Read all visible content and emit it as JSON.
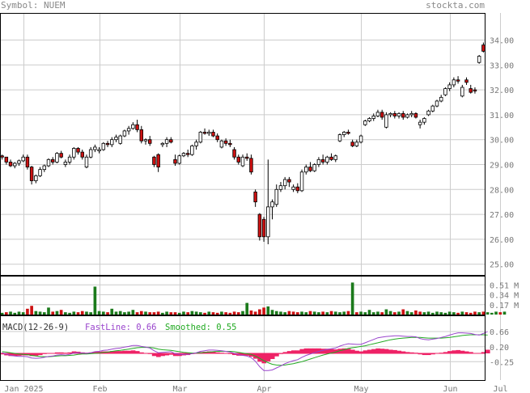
{
  "header": {
    "symbol_label": "Symbol: NUEM",
    "site": "stockta.com"
  },
  "colors": {
    "up": "#ffffff",
    "down": "#cc1111",
    "vol_up": "#1b7a1b",
    "vol_down": "#cc1111",
    "fast": "#9944cc",
    "smooth": "#22aa22",
    "hist": "#ee2266",
    "grid": "#cccccc"
  },
  "chart_data": [
    {
      "type": "candlestick",
      "name": "price",
      "y_ticks": [
        34.0,
        33.0,
        32.0,
        31.0,
        30.0,
        29.0,
        28.0,
        27.0,
        26.0,
        25.0
      ],
      "y_tick_labels": [
        "34.00",
        "33.00",
        "32.00",
        "31.00",
        "30.00",
        "29.00",
        "28.00",
        "27.00",
        "26.00",
        "25.00"
      ],
      "x_labels": [
        "Jan 2025",
        "Feb",
        "Mar",
        "Apr",
        "May",
        "Jun",
        "Jul"
      ],
      "x_label_index": [
        5,
        23,
        42,
        62,
        85,
        106,
        118
      ],
      "candles": [
        [
          29.35,
          29.4,
          29.2,
          29.3
        ],
        [
          29.3,
          29.3,
          29.0,
          29.1
        ],
        [
          29.1,
          29.2,
          28.9,
          28.95
        ],
        [
          28.95,
          29.1,
          28.85,
          29.05
        ],
        [
          29.05,
          29.2,
          28.95,
          29.15
        ],
        [
          29.15,
          29.4,
          29.1,
          29.3
        ],
        [
          29.3,
          29.4,
          28.8,
          28.9
        ],
        [
          28.9,
          28.95,
          28.2,
          28.35
        ],
        [
          28.35,
          28.6,
          28.25,
          28.55
        ],
        [
          28.55,
          28.9,
          28.5,
          28.8
        ],
        [
          28.8,
          29.0,
          28.7,
          28.95
        ],
        [
          28.95,
          29.25,
          28.9,
          29.2
        ],
        [
          29.2,
          29.3,
          29.0,
          29.1
        ],
        [
          29.1,
          29.5,
          29.05,
          29.45
        ],
        [
          29.45,
          29.55,
          29.25,
          29.3
        ],
        [
          29.0,
          29.2,
          28.9,
          29.1
        ],
        [
          29.1,
          29.4,
          29.0,
          29.3
        ],
        [
          29.3,
          29.7,
          29.2,
          29.65
        ],
        [
          29.65,
          29.7,
          29.4,
          29.5
        ],
        [
          29.5,
          29.6,
          29.2,
          29.3
        ],
        [
          28.9,
          29.4,
          28.85,
          29.3
        ],
        [
          29.3,
          29.7,
          29.25,
          29.6
        ],
        [
          29.6,
          29.8,
          29.5,
          29.7
        ],
        [
          29.55,
          29.7,
          29.45,
          29.6
        ],
        [
          29.6,
          29.9,
          29.55,
          29.85
        ],
        [
          29.85,
          29.95,
          29.7,
          29.8
        ],
        [
          29.8,
          30.1,
          29.7,
          30.0
        ],
        [
          30.0,
          30.2,
          29.9,
          30.1
        ],
        [
          29.85,
          30.2,
          29.8,
          30.15
        ],
        [
          30.15,
          30.4,
          30.1,
          30.35
        ],
        [
          30.35,
          30.55,
          30.2,
          30.45
        ],
        [
          30.45,
          30.7,
          30.4,
          30.6
        ],
        [
          30.6,
          30.8,
          30.3,
          30.4
        ],
        [
          30.4,
          30.55,
          29.85,
          29.95
        ],
        [
          29.95,
          30.05,
          29.8,
          30.0
        ],
        [
          30.0,
          30.15,
          29.75,
          29.85
        ],
        [
          29.3,
          29.35,
          28.9,
          29.0
        ],
        [
          29.4,
          29.45,
          28.7,
          28.9
        ],
        [
          29.8,
          29.9,
          29.7,
          29.85
        ],
        [
          29.85,
          30.1,
          29.7,
          30.0
        ],
        [
          30.0,
          30.1,
          29.85,
          29.9
        ],
        [
          29.2,
          29.4,
          28.95,
          29.05
        ],
        [
          29.05,
          29.4,
          29.0,
          29.35
        ],
        [
          29.35,
          29.5,
          29.3,
          29.45
        ],
        [
          29.45,
          29.6,
          29.3,
          29.4
        ],
        [
          29.4,
          29.8,
          29.35,
          29.75
        ],
        [
          29.75,
          30.0,
          29.6,
          29.9
        ],
        [
          29.9,
          30.35,
          29.85,
          30.3
        ],
        [
          30.3,
          30.45,
          30.2,
          30.25
        ],
        [
          30.25,
          30.4,
          30.15,
          30.3
        ],
        [
          30.3,
          30.4,
          30.1,
          30.15
        ],
        [
          30.15,
          30.25,
          29.9,
          30.0
        ],
        [
          29.7,
          30.0,
          29.65,
          29.95
        ],
        [
          29.95,
          30.05,
          29.75,
          29.85
        ],
        [
          29.85,
          30.0,
          29.7,
          29.8
        ],
        [
          29.6,
          29.7,
          29.2,
          29.3
        ],
        [
          29.3,
          29.4,
          29.0,
          29.1
        ],
        [
          28.95,
          29.4,
          28.9,
          29.3
        ],
        [
          29.3,
          29.45,
          29.15,
          29.25
        ],
        [
          29.25,
          29.4,
          28.6,
          28.7
        ],
        [
          27.9,
          28.0,
          27.3,
          27.5
        ],
        [
          27.0,
          27.05,
          25.95,
          26.1
        ],
        [
          26.8,
          26.9,
          25.9,
          26.1
        ],
        [
          26.1,
          29.2,
          25.8,
          27.3
        ],
        [
          27.3,
          27.6,
          26.8,
          27.5
        ],
        [
          27.4,
          28.2,
          27.3,
          28.0
        ],
        [
          28.0,
          28.3,
          27.9,
          28.15
        ],
        [
          28.15,
          28.5,
          28.0,
          28.4
        ],
        [
          28.4,
          28.5,
          28.1,
          28.3
        ],
        [
          28.0,
          28.2,
          27.9,
          28.1
        ],
        [
          28.1,
          28.25,
          27.85,
          27.95
        ],
        [
          27.95,
          28.8,
          27.9,
          28.7
        ],
        [
          28.7,
          29.0,
          28.6,
          28.9
        ],
        [
          28.9,
          29.1,
          28.7,
          28.75
        ],
        [
          28.75,
          29.05,
          28.7,
          29.0
        ],
        [
          29.0,
          29.3,
          28.9,
          29.2
        ],
        [
          29.2,
          29.4,
          29.0,
          29.1
        ],
        [
          29.1,
          29.35,
          29.0,
          29.3
        ],
        [
          29.3,
          29.45,
          29.15,
          29.2
        ],
        [
          29.2,
          29.4,
          29.1,
          29.35
        ],
        [
          29.95,
          30.25,
          29.9,
          30.2
        ],
        [
          30.2,
          30.35,
          30.1,
          30.3
        ],
        [
          30.3,
          30.4,
          30.2,
          30.25
        ],
        [
          29.9,
          30.0,
          29.7,
          29.75
        ],
        [
          29.75,
          30.0,
          29.7,
          29.9
        ],
        [
          29.9,
          30.2,
          29.85,
          30.15
        ],
        [
          30.6,
          30.8,
          30.55,
          30.75
        ],
        [
          30.75,
          30.9,
          30.7,
          30.85
        ],
        [
          30.85,
          31.05,
          30.75,
          30.95
        ],
        [
          30.95,
          31.2,
          30.9,
          31.1
        ],
        [
          31.1,
          31.2,
          30.8,
          30.9
        ],
        [
          30.5,
          31.1,
          30.45,
          31.0
        ],
        [
          31.0,
          31.1,
          30.9,
          31.05
        ],
        [
          31.05,
          31.15,
          30.85,
          30.95
        ],
        [
          30.95,
          31.1,
          30.85,
          31.05
        ],
        [
          31.05,
          31.15,
          30.8,
          30.9
        ],
        [
          30.9,
          31.05,
          30.85,
          31.0
        ],
        [
          31.0,
          31.15,
          30.9,
          31.05
        ],
        [
          31.05,
          31.1,
          30.85,
          30.9
        ],
        [
          30.6,
          30.8,
          30.45,
          30.7
        ],
        [
          30.7,
          30.9,
          30.6,
          30.85
        ],
        [
          31.0,
          31.2,
          30.95,
          31.15
        ],
        [
          31.15,
          31.4,
          31.1,
          31.35
        ],
        [
          31.35,
          31.6,
          31.3,
          31.55
        ],
        [
          31.55,
          31.8,
          31.5,
          31.7
        ],
        [
          31.8,
          32.1,
          31.75,
          32.05
        ],
        [
          32.05,
          32.3,
          31.95,
          32.2
        ],
        [
          32.2,
          32.5,
          32.1,
          32.4
        ],
        [
          32.4,
          32.55,
          32.25,
          32.35
        ],
        [
          31.75,
          32.2,
          31.7,
          32.1
        ],
        [
          32.4,
          32.5,
          32.2,
          32.3
        ],
        [
          32.05,
          32.2,
          31.85,
          31.9
        ],
        [
          32.0,
          32.1,
          31.85,
          31.95
        ],
        [
          33.1,
          33.4,
          33.05,
          33.35
        ],
        [
          33.8,
          33.9,
          33.5,
          33.55
        ]
      ]
    },
    {
      "type": "bar",
      "name": "volume",
      "y_ticks": [
        0.51,
        0.34,
        0.17
      ],
      "y_tick_labels": [
        "0.51 M",
        "0.34 M",
        "0.17 M"
      ],
      "values": [
        0.03,
        0.04,
        0.05,
        0.03,
        0.05,
        0.04,
        0.1,
        0.15,
        0.06,
        0.05,
        0.04,
        0.12,
        0.05,
        0.06,
        0.08,
        0.04,
        0.03,
        0.05,
        0.04,
        0.06,
        0.05,
        0.04,
        0.48,
        0.06,
        0.05,
        0.04,
        0.1,
        0.05,
        0.06,
        0.04,
        0.05,
        0.08,
        0.04,
        0.06,
        0.05,
        0.04,
        0.04,
        0.05,
        0.03,
        0.05,
        0.04,
        0.04,
        0.03,
        0.05,
        0.04,
        0.06,
        0.05,
        0.04,
        0.03,
        0.05,
        0.04,
        0.03,
        0.05,
        0.04,
        0.03,
        0.05,
        0.04,
        0.06,
        0.2,
        0.07,
        0.05,
        0.09,
        0.12,
        0.14,
        0.08,
        0.06,
        0.05,
        0.04,
        0.06,
        0.05,
        0.04,
        0.05,
        0.04,
        0.06,
        0.05,
        0.04,
        0.05,
        0.04,
        0.06,
        0.05,
        0.04,
        0.05,
        0.06,
        0.55,
        0.04,
        0.05,
        0.04,
        0.08,
        0.04,
        0.05,
        0.04,
        0.09,
        0.06,
        0.04,
        0.05,
        0.09,
        0.06,
        0.04,
        0.07,
        0.05,
        0.04,
        0.05,
        0.03,
        0.05,
        0.04,
        0.03,
        0.05,
        0.04,
        0.03,
        0.05,
        0.04,
        0.03,
        0.05,
        0.04,
        0.05,
        0.04,
        0.03,
        0.05,
        0.04,
        0.05
      ],
      "up_flags": [
        1,
        0,
        1,
        1,
        1,
        1,
        0,
        0,
        1,
        1,
        1,
        1,
        0,
        1,
        0,
        1,
        1,
        1,
        0,
        0,
        1,
        1,
        1,
        1,
        1,
        0,
        1,
        1,
        1,
        1,
        1,
        1,
        0,
        0,
        1,
        0,
        0,
        0,
        1,
        1,
        0,
        0,
        1,
        1,
        0,
        1,
        1,
        1,
        0,
        1,
        0,
        0,
        1,
        0,
        0,
        0,
        0,
        1,
        1,
        0,
        0,
        0,
        0,
        1,
        1,
        1,
        1,
        1,
        0,
        0,
        0,
        1,
        1,
        0,
        1,
        1,
        0,
        1,
        0,
        1,
        1,
        1,
        0,
        1,
        0,
        1,
        1,
        1,
        1,
        1,
        0,
        1,
        1,
        0,
        1,
        0,
        1,
        1,
        0,
        0,
        1,
        1,
        1,
        1,
        1,
        1,
        1,
        1,
        0,
        1,
        0,
        0,
        0,
        1,
        0,
        1,
        1,
        1,
        0,
        1
      ]
    },
    {
      "type": "line",
      "name": "macd",
      "label": "MACD(12-26-9)",
      "fast_label": "FastLine: 0.66",
      "smooth_label": "Smoothed: 0.55",
      "y_ticks": [
        0.66,
        0.2,
        -0.25
      ],
      "y_tick_labels": [
        "0.66",
        "0.20",
        "-0.25"
      ],
      "fast": [
        0.02,
        -0.02,
        -0.06,
        -0.08,
        -0.09,
        -0.09,
        -0.1,
        -0.14,
        -0.15,
        -0.14,
        -0.12,
        -0.09,
        -0.08,
        -0.05,
        -0.04,
        -0.05,
        -0.03,
        0.01,
        0.02,
        0.01,
        0.0,
        0.02,
        0.05,
        0.06,
        0.09,
        0.1,
        0.13,
        0.15,
        0.16,
        0.19,
        0.21,
        0.24,
        0.24,
        0.21,
        0.19,
        0.16,
        0.08,
        0.02,
        0.03,
        0.04,
        0.05,
        -0.01,
        -0.03,
        -0.03,
        -0.03,
        -0.01,
        0.02,
        0.06,
        0.08,
        0.1,
        0.1,
        0.09,
        0.08,
        0.06,
        0.04,
        0.0,
        -0.04,
        -0.06,
        -0.08,
        -0.13,
        -0.24,
        -0.4,
        -0.52,
        -0.52,
        -0.5,
        -0.44,
        -0.38,
        -0.31,
        -0.26,
        -0.22,
        -0.19,
        -0.12,
        -0.06,
        -0.02,
        0.02,
        0.06,
        0.09,
        0.12,
        0.14,
        0.16,
        0.22,
        0.26,
        0.29,
        0.28,
        0.27,
        0.27,
        0.32,
        0.37,
        0.42,
        0.47,
        0.49,
        0.51,
        0.52,
        0.53,
        0.53,
        0.52,
        0.51,
        0.51,
        0.5,
        0.45,
        0.42,
        0.41,
        0.43,
        0.45,
        0.48,
        0.51,
        0.55,
        0.59,
        0.62,
        0.62,
        0.61,
        0.6,
        0.57,
        0.55,
        0.6,
        0.66
      ],
      "smooth": [
        0.05,
        0.04,
        0.02,
        0.0,
        -0.02,
        -0.03,
        -0.04,
        -0.06,
        -0.08,
        -0.09,
        -0.1,
        -0.1,
        -0.09,
        -0.08,
        -0.07,
        -0.07,
        -0.06,
        -0.05,
        -0.03,
        -0.02,
        -0.02,
        -0.01,
        0.0,
        0.01,
        0.03,
        0.04,
        0.06,
        0.08,
        0.09,
        0.11,
        0.13,
        0.15,
        0.17,
        0.18,
        0.18,
        0.18,
        0.16,
        0.13,
        0.11,
        0.1,
        0.09,
        0.07,
        0.05,
        0.03,
        0.02,
        0.01,
        0.01,
        0.02,
        0.03,
        0.04,
        0.05,
        0.06,
        0.06,
        0.06,
        0.06,
        0.05,
        0.03,
        0.01,
        -0.01,
        -0.03,
        -0.08,
        -0.15,
        -0.22,
        -0.28,
        -0.33,
        -0.35,
        -0.36,
        -0.35,
        -0.33,
        -0.31,
        -0.28,
        -0.25,
        -0.21,
        -0.17,
        -0.13,
        -0.09,
        -0.05,
        -0.02,
        0.01,
        0.04,
        0.08,
        0.11,
        0.15,
        0.17,
        0.19,
        0.21,
        0.23,
        0.26,
        0.29,
        0.32,
        0.35,
        0.38,
        0.41,
        0.43,
        0.45,
        0.46,
        0.47,
        0.48,
        0.48,
        0.48,
        0.47,
        0.46,
        0.46,
        0.46,
        0.46,
        0.47,
        0.48,
        0.5,
        0.52,
        0.54,
        0.55,
        0.56,
        0.56,
        0.56,
        0.56,
        0.55
      ]
    }
  ]
}
